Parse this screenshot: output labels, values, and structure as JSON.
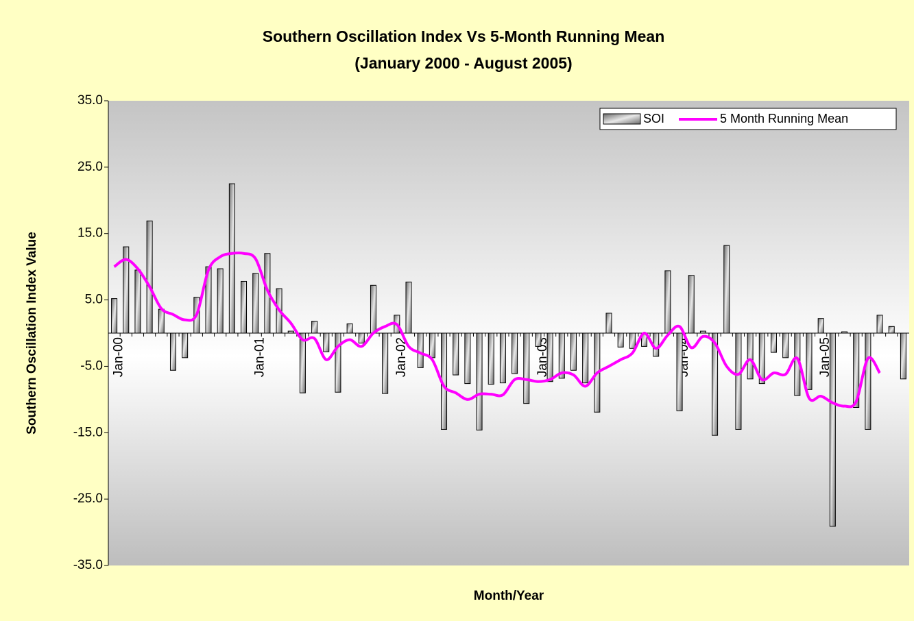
{
  "chart_data": {
    "type": "bar",
    "title": "Southern Oscillation Index Vs 5-Month Running Mean",
    "subtitle": "(January 2000 - August 2005)",
    "x_label": "Month/Year",
    "y_label": "Southern Oscillation Index Value",
    "categories": [
      "Jan-00",
      null,
      null,
      null,
      null,
      null,
      null,
      null,
      null,
      null,
      null,
      null,
      "Jan-01",
      null,
      null,
      null,
      null,
      null,
      null,
      null,
      null,
      null,
      null,
      null,
      "Jan-02",
      null,
      null,
      null,
      null,
      null,
      null,
      null,
      null,
      null,
      null,
      null,
      "Jan-03",
      null,
      null,
      null,
      null,
      null,
      null,
      null,
      null,
      null,
      null,
      null,
      "Jan-04",
      null,
      null,
      null,
      null,
      null,
      null,
      null,
      null,
      null,
      null,
      null,
      "Jan-05",
      null,
      null,
      null,
      null,
      null,
      null,
      null
    ],
    "series": [
      {
        "name": "SOI",
        "type": "bar",
        "color": "#a0a0a0",
        "values": [
          5.2,
          13.0,
          9.5,
          16.9,
          3.6,
          -5.6,
          -3.7,
          5.4,
          10.0,
          9.7,
          22.5,
          7.8,
          9.0,
          12.0,
          6.7,
          0.3,
          -9.0,
          1.8,
          -2.8,
          -8.9,
          1.4,
          -1.5,
          7.2,
          -9.1,
          2.7,
          7.7,
          -5.2,
          -3.7,
          -14.5,
          -6.3,
          -7.6,
          -14.6,
          -7.7,
          -7.5,
          -6.1,
          -10.6,
          -2.0,
          -7.3,
          -6.8,
          -5.6,
          -7.5,
          -11.9,
          3.0,
          -2.1,
          -2.3,
          -2.0,
          -3.5,
          9.4,
          -11.7,
          8.7,
          0.3,
          -15.4,
          13.2,
          -14.5,
          -6.9,
          -7.6,
          -2.9,
          -3.7,
          -9.4,
          -8.5,
          2.2,
          -29.1,
          0.2,
          -11.2,
          -14.5,
          2.7,
          1.0,
          -6.9
        ]
      },
      {
        "name": "5 Month Running Mean",
        "type": "line",
        "color": "#ff00ff",
        "values": [
          10.0,
          11.1,
          9.7,
          7.0,
          3.7,
          2.8,
          2.0,
          2.8,
          9.5,
          11.5,
          12.0,
          12.0,
          11.2,
          6.5,
          3.5,
          1.5,
          -1.0,
          -0.8,
          -4.0,
          -2.0,
          -1.0,
          -2.0,
          0.0,
          1.0,
          1.3,
          -2.0,
          -3.0,
          -4.0,
          -8.0,
          -9.0,
          -10.0,
          -9.2,
          -9.2,
          -9.3,
          -7.0,
          -7.0,
          -7.3,
          -7.0,
          -6.0,
          -6.3,
          -8.0,
          -6.0,
          -5.0,
          -4.0,
          -3.0,
          0.0,
          -2.3,
          -0.3,
          1.0,
          -2.2,
          -0.5,
          -1.5,
          -5.0,
          -6.2,
          -4.0,
          -7.0,
          -6.0,
          -6.2,
          -3.8,
          -9.8,
          -9.5,
          -10.5,
          -11.0,
          -10.3,
          -3.8,
          -6.0,
          null,
          null
        ]
      }
    ],
    "ylim": [
      -35,
      35
    ],
    "yticks": [
      {
        "value": 35,
        "label": "35.0"
      },
      {
        "value": 25,
        "label": "25.0"
      },
      {
        "value": 15,
        "label": "15.0"
      },
      {
        "value": 5,
        "label": "5.0"
      },
      {
        "value": -5,
        "label": "-5.0"
      },
      {
        "value": -15,
        "label": "-15.0"
      },
      {
        "value": -25,
        "label": "-25.0"
      },
      {
        "value": -35,
        "label": "-35.0"
      }
    ],
    "grid": false,
    "legend": "top-right"
  }
}
